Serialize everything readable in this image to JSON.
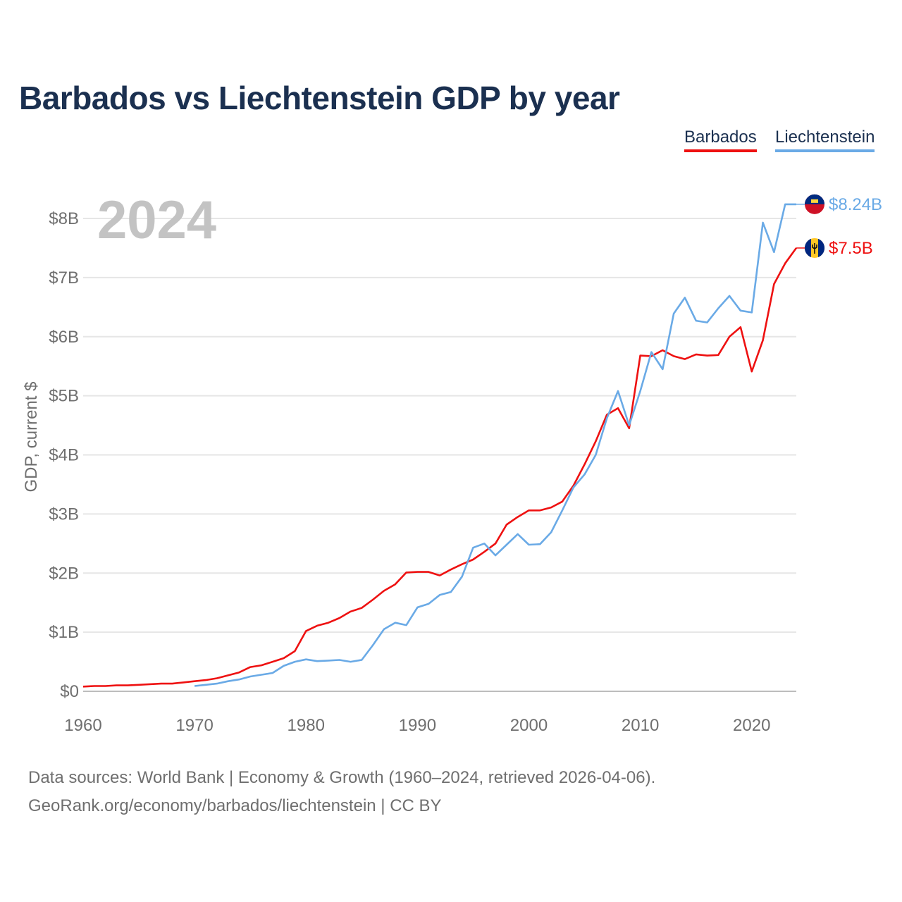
{
  "title": "Barbados vs Liechtenstein GDP by year",
  "legend": [
    {
      "label": "Barbados",
      "color": "#ee1111"
    },
    {
      "label": "Liechtenstein",
      "color": "#6aaae6"
    }
  ],
  "footer": {
    "line1": "Data sources: World Bank | Economy & Growth (1960–2024, retrieved 2026-04-06).",
    "line2": "GeoRank.org/economy/barbados/liechtenstein | CC BY"
  },
  "chart_data": {
    "type": "line",
    "title": "Barbados vs Liechtenstein GDP by year",
    "year_label": "2024",
    "xlabel": "",
    "ylabel": "GDP, current $",
    "xlim": [
      1960,
      2024
    ],
    "ylim": [
      0,
      8
    ],
    "x_ticks": [
      1960,
      1970,
      1980,
      1990,
      2000,
      2010,
      2020
    ],
    "y_ticks": [
      {
        "value": 0,
        "label": "$0"
      },
      {
        "value": 1,
        "label": "$1B"
      },
      {
        "value": 2,
        "label": "$2B"
      },
      {
        "value": 3,
        "label": "$3B"
      },
      {
        "value": 4,
        "label": "$4B"
      },
      {
        "value": 5,
        "label": "$5B"
      },
      {
        "value": 6,
        "label": "$6B"
      },
      {
        "value": 7,
        "label": "$7B"
      },
      {
        "value": 8,
        "label": "$8B"
      }
    ],
    "grid": true,
    "units": "billions of current US$",
    "series": [
      {
        "name": "Barbados",
        "color": "#ee1111",
        "end_label": "$7.5B",
        "flag_icon": "barbados-flag-icon",
        "x": [
          1960,
          1961,
          1962,
          1963,
          1964,
          1965,
          1966,
          1967,
          1968,
          1969,
          1970,
          1971,
          1972,
          1973,
          1974,
          1975,
          1976,
          1977,
          1978,
          1979,
          1980,
          1981,
          1982,
          1983,
          1984,
          1985,
          1986,
          1987,
          1988,
          1989,
          1990,
          1991,
          1992,
          1993,
          1994,
          1995,
          1996,
          1997,
          1998,
          1999,
          2000,
          2001,
          2002,
          2003,
          2004,
          2005,
          2006,
          2007,
          2008,
          2009,
          2010,
          2011,
          2012,
          2013,
          2014,
          2015,
          2016,
          2017,
          2018,
          2019,
          2020,
          2021,
          2022,
          2023,
          2024
        ],
        "values": [
          0.08,
          0.09,
          0.09,
          0.1,
          0.1,
          0.11,
          0.12,
          0.13,
          0.13,
          0.15,
          0.17,
          0.19,
          0.22,
          0.27,
          0.32,
          0.41,
          0.44,
          0.5,
          0.56,
          0.68,
          1.02,
          1.11,
          1.16,
          1.24,
          1.35,
          1.41,
          1.55,
          1.7,
          1.81,
          2.01,
          2.02,
          2.02,
          1.96,
          2.06,
          2.15,
          2.23,
          2.36,
          2.5,
          2.82,
          2.95,
          3.06,
          3.06,
          3.11,
          3.21,
          3.48,
          3.84,
          4.23,
          4.68,
          4.79,
          4.45,
          5.68,
          5.67,
          5.77,
          5.67,
          5.62,
          5.7,
          5.68,
          5.69,
          6.0,
          6.16,
          5.41,
          5.94,
          6.89,
          7.24,
          7.5
        ]
      },
      {
        "name": "Liechtenstein",
        "color": "#6aaae6",
        "end_label": "$8.24B",
        "flag_icon": "liechtenstein-flag-icon",
        "x": [
          1970,
          1971,
          1972,
          1973,
          1974,
          1975,
          1976,
          1977,
          1978,
          1979,
          1980,
          1981,
          1982,
          1983,
          1984,
          1985,
          1986,
          1987,
          1988,
          1989,
          1990,
          1991,
          1992,
          1993,
          1994,
          1995,
          1996,
          1997,
          1998,
          1999,
          2000,
          2001,
          2002,
          2003,
          2004,
          2005,
          2006,
          2007,
          2008,
          2009,
          2010,
          2011,
          2012,
          2013,
          2014,
          2015,
          2016,
          2017,
          2018,
          2019,
          2020,
          2021,
          2022,
          2023,
          2024
        ],
        "values": [
          0.09,
          0.11,
          0.13,
          0.17,
          0.2,
          0.25,
          0.28,
          0.31,
          0.43,
          0.5,
          0.54,
          0.51,
          0.52,
          0.53,
          0.5,
          0.53,
          0.78,
          1.05,
          1.16,
          1.12,
          1.42,
          1.48,
          1.63,
          1.68,
          1.94,
          2.43,
          2.5,
          2.3,
          2.48,
          2.66,
          2.48,
          2.49,
          2.69,
          3.06,
          3.45,
          3.67,
          4.0,
          4.62,
          5.08,
          4.5,
          5.08,
          5.74,
          5.45,
          6.39,
          6.66,
          6.27,
          6.24,
          6.48,
          6.69,
          6.44,
          6.41,
          7.93,
          7.43,
          8.24,
          8.24
        ]
      }
    ]
  }
}
